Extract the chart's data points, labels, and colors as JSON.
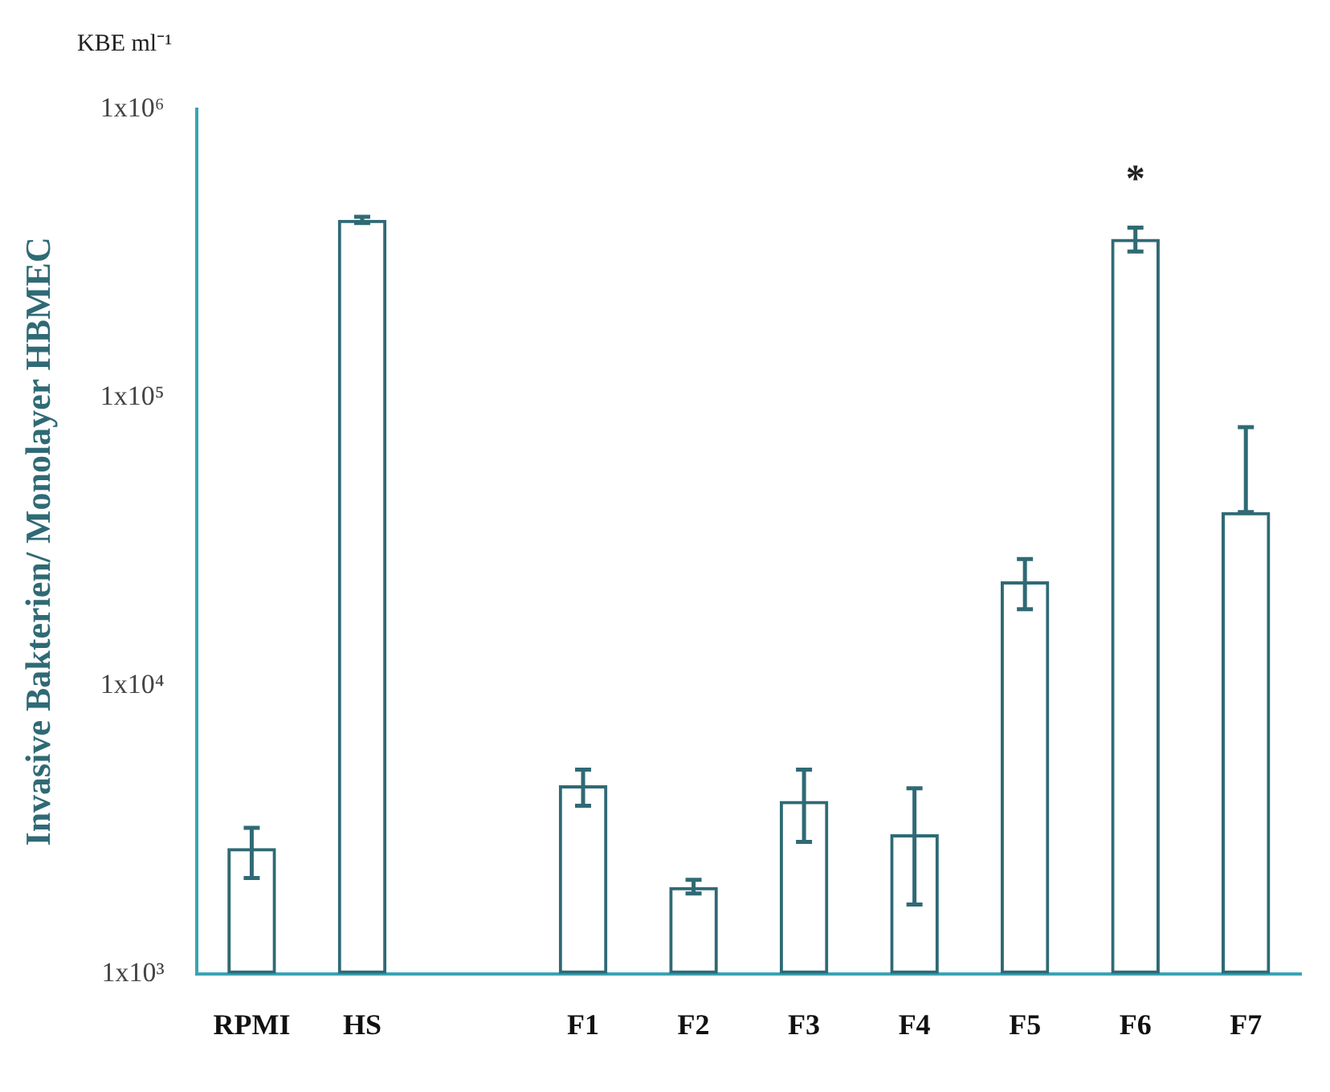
{
  "chart_data": {
    "type": "bar",
    "ylabel": "Invasive Bakterien/ Monolayer HBMEC",
    "categories": [
      "RPMI",
      "HS",
      null,
      "F1",
      "F2",
      "F3",
      "F4",
      "F5",
      "F6",
      "F7"
    ],
    "values": [
      2730,
      413000,
      null,
      4510,
      2000,
      3980,
      3050,
      23000,
      355000,
      40000
    ],
    "errors": [
      [
        2150,
        3210
      ],
      [
        403000,
        423000
      ],
      null,
      [
        3830,
        5110
      ],
      [
        1900,
        2120
      ],
      [
        2870,
        5110
      ],
      [
        1740,
        4400
      ],
      [
        18400,
        27500
      ],
      [
        321000,
        388000
      ],
      [
        40000,
        78800
      ]
    ],
    "color": "#2f6a75",
    "log": "y",
    "ylim": [
      1000,
      1000000
    ],
    "yticks": [
      {
        "value": 1000,
        "label": "1x10³"
      },
      {
        "value": 10000,
        "label": "1x10⁴"
      },
      {
        "value": 100000,
        "label": "1x10⁵"
      },
      {
        "value": 1000000,
        "label": "1x10⁶"
      }
    ],
    "grid": false,
    "legend": false,
    "annotations": [
      "KBE ml⁻¹",
      "*"
    ]
  }
}
